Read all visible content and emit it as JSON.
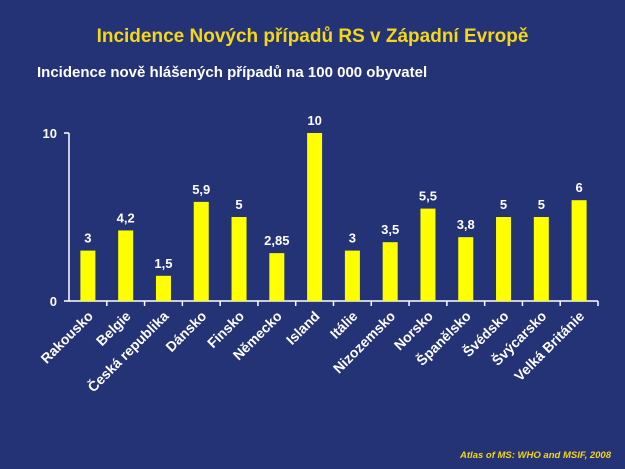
{
  "title": "Incidence Nových případů RS v Západní Evropě",
  "subtitle": "Incidence nově hlášených případů na 100 000 obyvatel",
  "source": "Atlas of MS: WHO and MSIF, 2008",
  "colors": {
    "background": "#243276",
    "bar": "#ffff00",
    "title": "#f4d716",
    "axis": "#ffffff"
  },
  "chart_data": {
    "type": "bar",
    "categories": [
      "Rakousko",
      "Belgie",
      "Česká republika",
      "Dánsko",
      "Finsko",
      "Německo",
      "Island",
      "Itálie",
      "Nizozemsko",
      "Norsko",
      "Španělsko",
      "Švédsko",
      "Švýcarsko",
      "Velká Británie"
    ],
    "values": [
      3,
      4.2,
      1.5,
      5.9,
      5,
      2.85,
      10,
      3,
      3.5,
      5.5,
      3.8,
      5,
      5,
      6
    ],
    "data_labels": [
      "3",
      "4,2",
      "1,5",
      "5,9",
      "5",
      "2,85",
      "10",
      "3",
      "3,5",
      "5,5",
      "3,8",
      "5",
      "5",
      "6"
    ],
    "ylim": [
      0,
      10
    ],
    "yticks": [
      "0",
      "10"
    ],
    "grid": false,
    "legend": "none"
  }
}
